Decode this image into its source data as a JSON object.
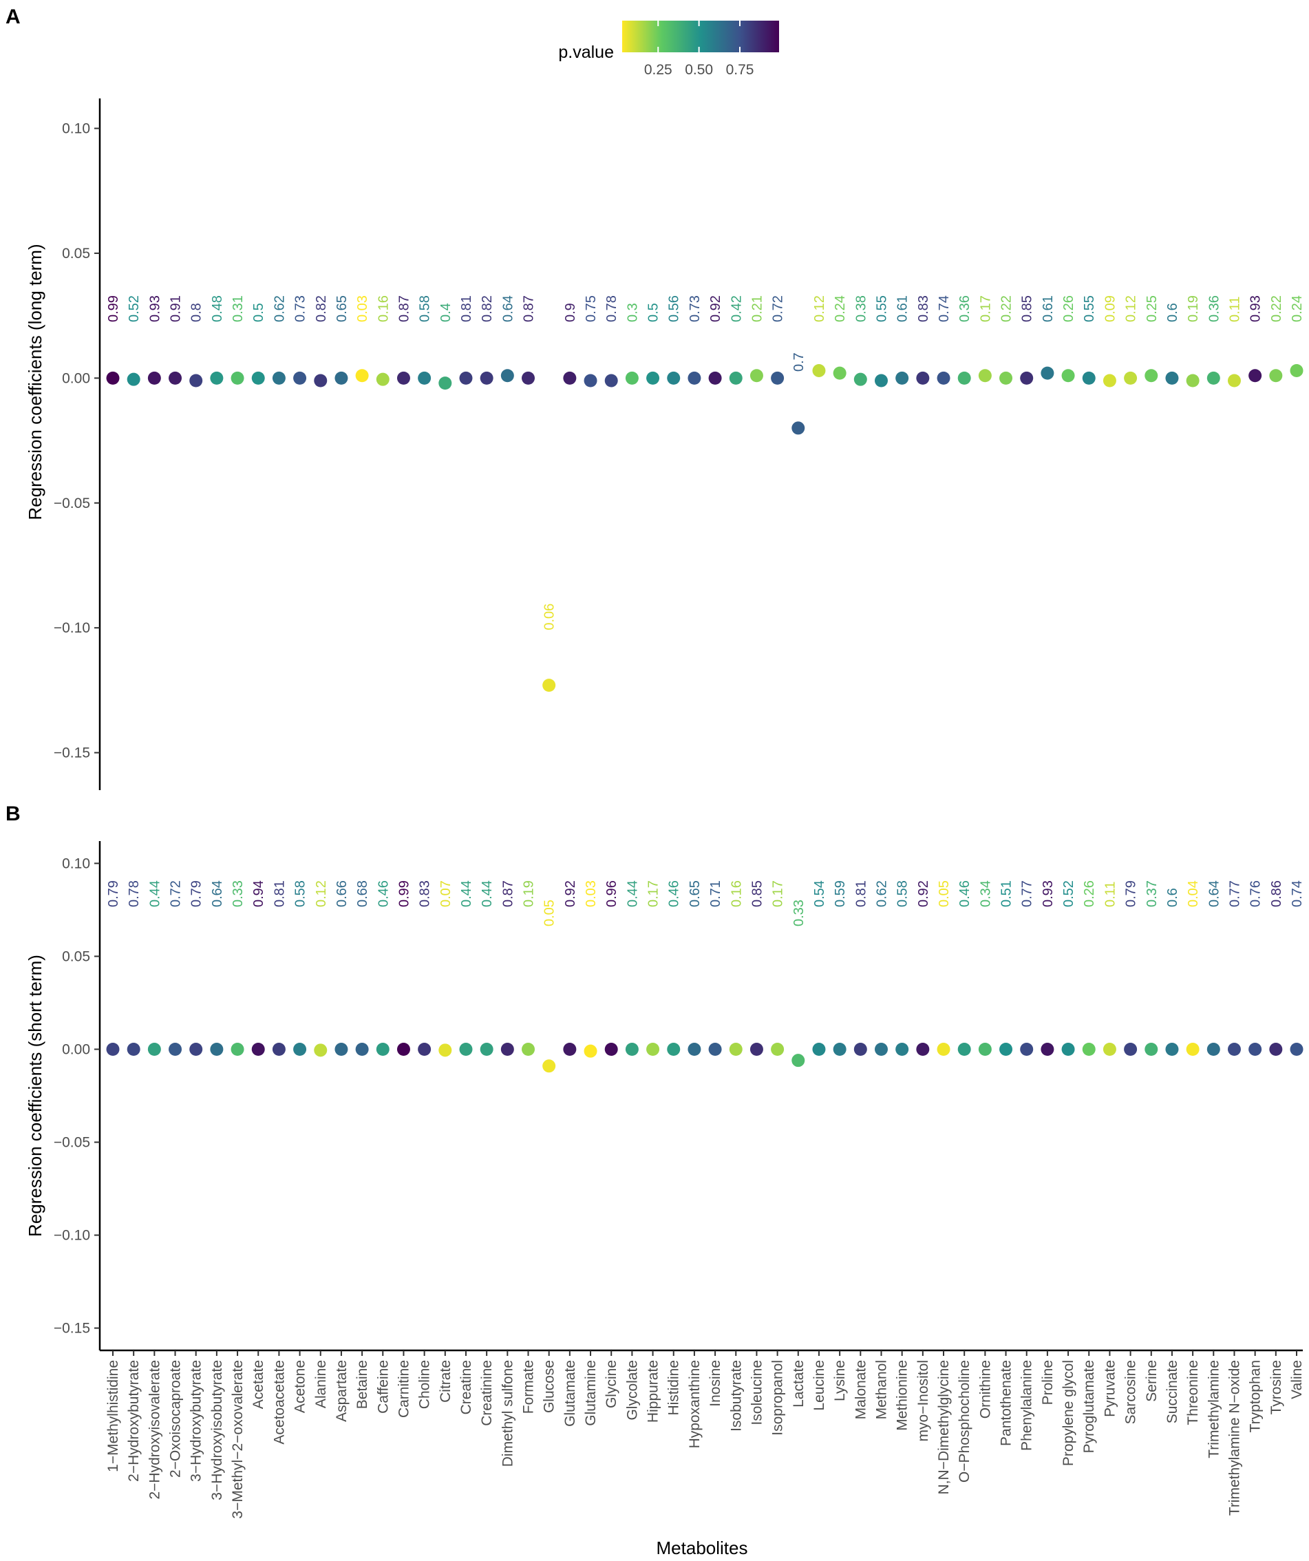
{
  "chart_data": {
    "type": "scatter",
    "title": "",
    "xlabel": "Metabolites",
    "legend": {
      "title": "p.value",
      "position": "top-center",
      "ticks": [
        "0.25",
        "0.50",
        "0.75"
      ],
      "range": [
        0.03,
        0.99
      ],
      "palette": [
        "#fde725",
        "#5ec962",
        "#21918c",
        "#3b528b",
        "#440154"
      ]
    },
    "categories": [
      "1−Methylhistidine",
      "2−Hydroxybutyrate",
      "2−Hydroxyisovalerate",
      "2−Oxoisocaproate",
      "3−Hydroxybutyrate",
      "3−Hydroxyisobutyrate",
      "3−Methyl−2−oxovalerate",
      "Acetate",
      "Acetoacetate",
      "Acetone",
      "Alanine",
      "Aspartate",
      "Betaine",
      "Caffeine",
      "Carnitine",
      "Choline",
      "Citrate",
      "Creatine",
      "Creatinine",
      "Dimethyl sulfone",
      "Formate",
      "Glucose",
      "Glutamate",
      "Glutamine",
      "Glycine",
      "Glycolate",
      "Hippurate",
      "Histidine",
      "Hypoxanthine",
      "Inosine",
      "Isobutyrate",
      "Isoleucine",
      "Isopropanol",
      "Lactate",
      "Leucine",
      "Lysine",
      "Malonate",
      "Methanol",
      "Methionine",
      "myo−Inositol",
      "N,N−Dimethylglycine",
      "O−Phosphocholine",
      "Ornithine",
      "Pantothenate",
      "Phenylalanine",
      "Proline",
      "Propylene glycol",
      "Pyroglutamate",
      "Pyruvate",
      "Sarcosine",
      "Serine",
      "Succinate",
      "Threonine",
      "Trimethylamine",
      "Trimethylamine N−oxide",
      "Tryptophan",
      "Tyrosine",
      "Valine"
    ],
    "panels": [
      {
        "label": "A",
        "ylabel": "Regression coefficients (long term)",
        "ylim": [
          -0.165,
          0.112
        ],
        "yticks": [
          "0.10",
          "0.05",
          "0.00",
          "−0.05",
          "−0.10",
          "−0.15"
        ],
        "ytick_values": [
          0.1,
          0.05,
          0.0,
          -0.05,
          -0.1,
          -0.15
        ],
        "values": [
          0.0,
          -0.0005,
          0.0,
          0.0,
          -0.001,
          0.0,
          0.0,
          0.0,
          0.0,
          0.0,
          -0.001,
          0.0,
          0.001,
          -0.0005,
          0.0,
          0.0,
          -0.002,
          0.0,
          0.0,
          0.001,
          0.0,
          -0.123,
          0.0,
          -0.001,
          -0.001,
          0.0,
          0.0,
          0.0,
          0.0,
          0.0,
          0.0,
          0.001,
          0.0,
          -0.02,
          0.003,
          0.002,
          -0.0005,
          -0.001,
          0.0,
          0.0,
          0.0,
          0.0,
          0.001,
          0.0,
          0.0,
          0.002,
          0.001,
          0.0,
          -0.001,
          0.0,
          0.001,
          0.0,
          -0.001,
          0.0,
          -0.001,
          0.001,
          0.001,
          0.003
        ],
        "pvalues": [
          "0.99",
          "0.52",
          "0.93",
          "0.91",
          "0.8",
          "0.48",
          "0.31",
          "0.5",
          "0.62",
          "0.73",
          "0.82",
          "0.65",
          "0.03",
          "0.16",
          "0.87",
          "0.58",
          "0.4",
          "0.81",
          "0.82",
          "0.64",
          "0.87",
          "0.06",
          "0.9",
          "0.75",
          "0.78",
          "0.3",
          "0.5",
          "0.56",
          "0.73",
          "0.92",
          "0.42",
          "0.21",
          "0.72",
          "0.7",
          "0.12",
          "0.24",
          "0.38",
          "0.55",
          "0.61",
          "0.83",
          "0.74",
          "0.36",
          "0.17",
          "0.22",
          "0.85",
          "0.61",
          "0.26",
          "0.55",
          "0.09",
          "0.12",
          "0.25",
          "0.6",
          "0.19",
          "0.36",
          "0.11",
          "0.93",
          "0.22",
          "0.24"
        ]
      },
      {
        "label": "B",
        "ylabel": "Regression coefficients (short term)",
        "ylim": [
          -0.162,
          0.112
        ],
        "yticks": [
          "0.10",
          "0.05",
          "0.00",
          "−0.05",
          "−0.10",
          "−0.15"
        ],
        "ytick_values": [
          0.1,
          0.05,
          0.0,
          -0.05,
          -0.1,
          -0.15
        ],
        "values": [
          0.0,
          0.0,
          0.0,
          0.0,
          0.0,
          0.0,
          0.0,
          0.0,
          0.0,
          0.0,
          -0.0005,
          0.0,
          0.0,
          0.0,
          0.0,
          0.0,
          -0.0005,
          0.0,
          0.0,
          0.0,
          0.0,
          -0.009,
          0.0,
          -0.001,
          0.0,
          0.0,
          0.0,
          0.0,
          0.0,
          0.0,
          0.0,
          0.0,
          0.0,
          -0.006,
          0.0,
          0.0,
          0.0,
          0.0,
          0.0,
          0.0,
          0.0,
          0.0,
          0.0,
          0.0,
          0.0,
          0.0,
          0.0,
          0.0,
          0.0,
          0.0,
          0.0,
          0.0,
          0.0,
          0.0,
          0.0,
          0.0,
          0.0,
          0.0
        ],
        "pvalues": [
          "0.79",
          "0.78",
          "0.44",
          "0.72",
          "0.79",
          "0.64",
          "0.33",
          "0.94",
          "0.81",
          "0.58",
          "0.12",
          "0.66",
          "0.68",
          "0.46",
          "0.99",
          "0.83",
          "0.07",
          "0.44",
          "0.44",
          "0.87",
          "0.19",
          "0.05",
          "0.92",
          "0.03",
          "0.96",
          "0.44",
          "0.17",
          "0.46",
          "0.65",
          "0.71",
          "0.16",
          "0.85",
          "0.17",
          "0.33",
          "0.54",
          "0.59",
          "0.81",
          "0.62",
          "0.58",
          "0.92",
          "0.05",
          "0.46",
          "0.34",
          "0.51",
          "0.77",
          "0.93",
          "0.52",
          "0.26",
          "0.11",
          "0.79",
          "0.37",
          "0.6",
          "0.04",
          "0.64",
          "0.77",
          "0.76",
          "0.86",
          "0.74"
        ]
      }
    ]
  }
}
